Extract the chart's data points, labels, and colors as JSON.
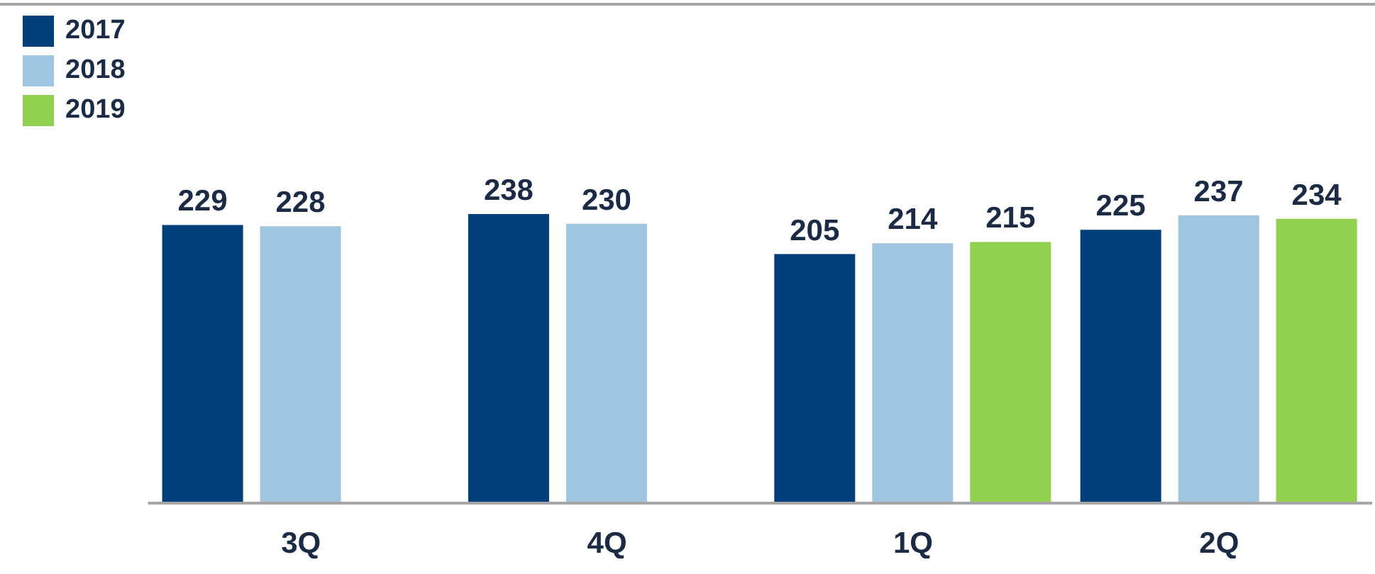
{
  "chart_data": {
    "type": "bar",
    "categories": [
      "3Q",
      "4Q",
      "1Q",
      "2Q"
    ],
    "series": [
      {
        "name": "2017",
        "color": "#003f7a",
        "values": [
          229,
          238,
          205,
          225
        ]
      },
      {
        "name": "2018",
        "color": "#9fc5e0",
        "values": [
          228,
          230,
          214,
          237
        ]
      },
      {
        "name": "2019",
        "color": "#92d050",
        "values": [
          null,
          null,
          215,
          234
        ]
      }
    ],
    "data_labels": true,
    "legend": "top left",
    "grid": false,
    "tick_labels": "x"
  }
}
